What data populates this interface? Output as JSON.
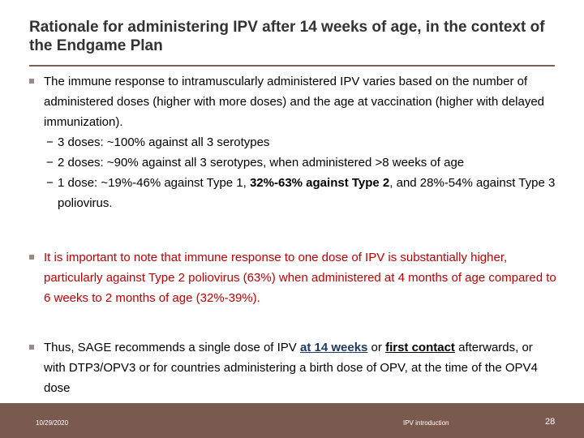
{
  "title": "Rationale for administering IPV after 14 weeks of age, in the context of the Endgame Plan",
  "bullet1": {
    "text": "The immune response to intramuscularly administered IPV varies based on the number of administered doses (higher with more doses) and the age at vaccination (higher with delayed immunization).",
    "dash": "−",
    "sub1": "3 doses: ~100% against all 3 serotypes",
    "sub2": "2 doses: ~90% against all 3 serotypes, when administered >8 weeks of age",
    "sub3_pre": "1 dose:  ~19%-46% against Type 1, ",
    "sub3_bold": "32%-63% against Type 2",
    "sub3_post": ", and 28%-54% against Type 3 poliovirus."
  },
  "bullet2": {
    "text": "It is important to note that immune response to one dose of IPV is substantially higher, particularly against Type 2 poliovirus (63%) when administered at 4 months of age compared to 6 weeks to 2 months of age (32%-39%)."
  },
  "bullet3": {
    "pre": "Thus, SAGE recommends a single dose of IPV ",
    "link1": "at 14 weeks",
    "mid": " or ",
    "link2": "first contact",
    "post": " afterwards, or with DTP3/OPV3 or for countries administering a birth dose of OPV, at the time of the OPV4 dose"
  },
  "footer": {
    "date": "10/29/2020",
    "center": "IPV introduction",
    "page": "28"
  },
  "colors": {
    "accent": "#7a5a4f",
    "emphasis_red": "#c00000",
    "link_blue": "#1f3864"
  }
}
